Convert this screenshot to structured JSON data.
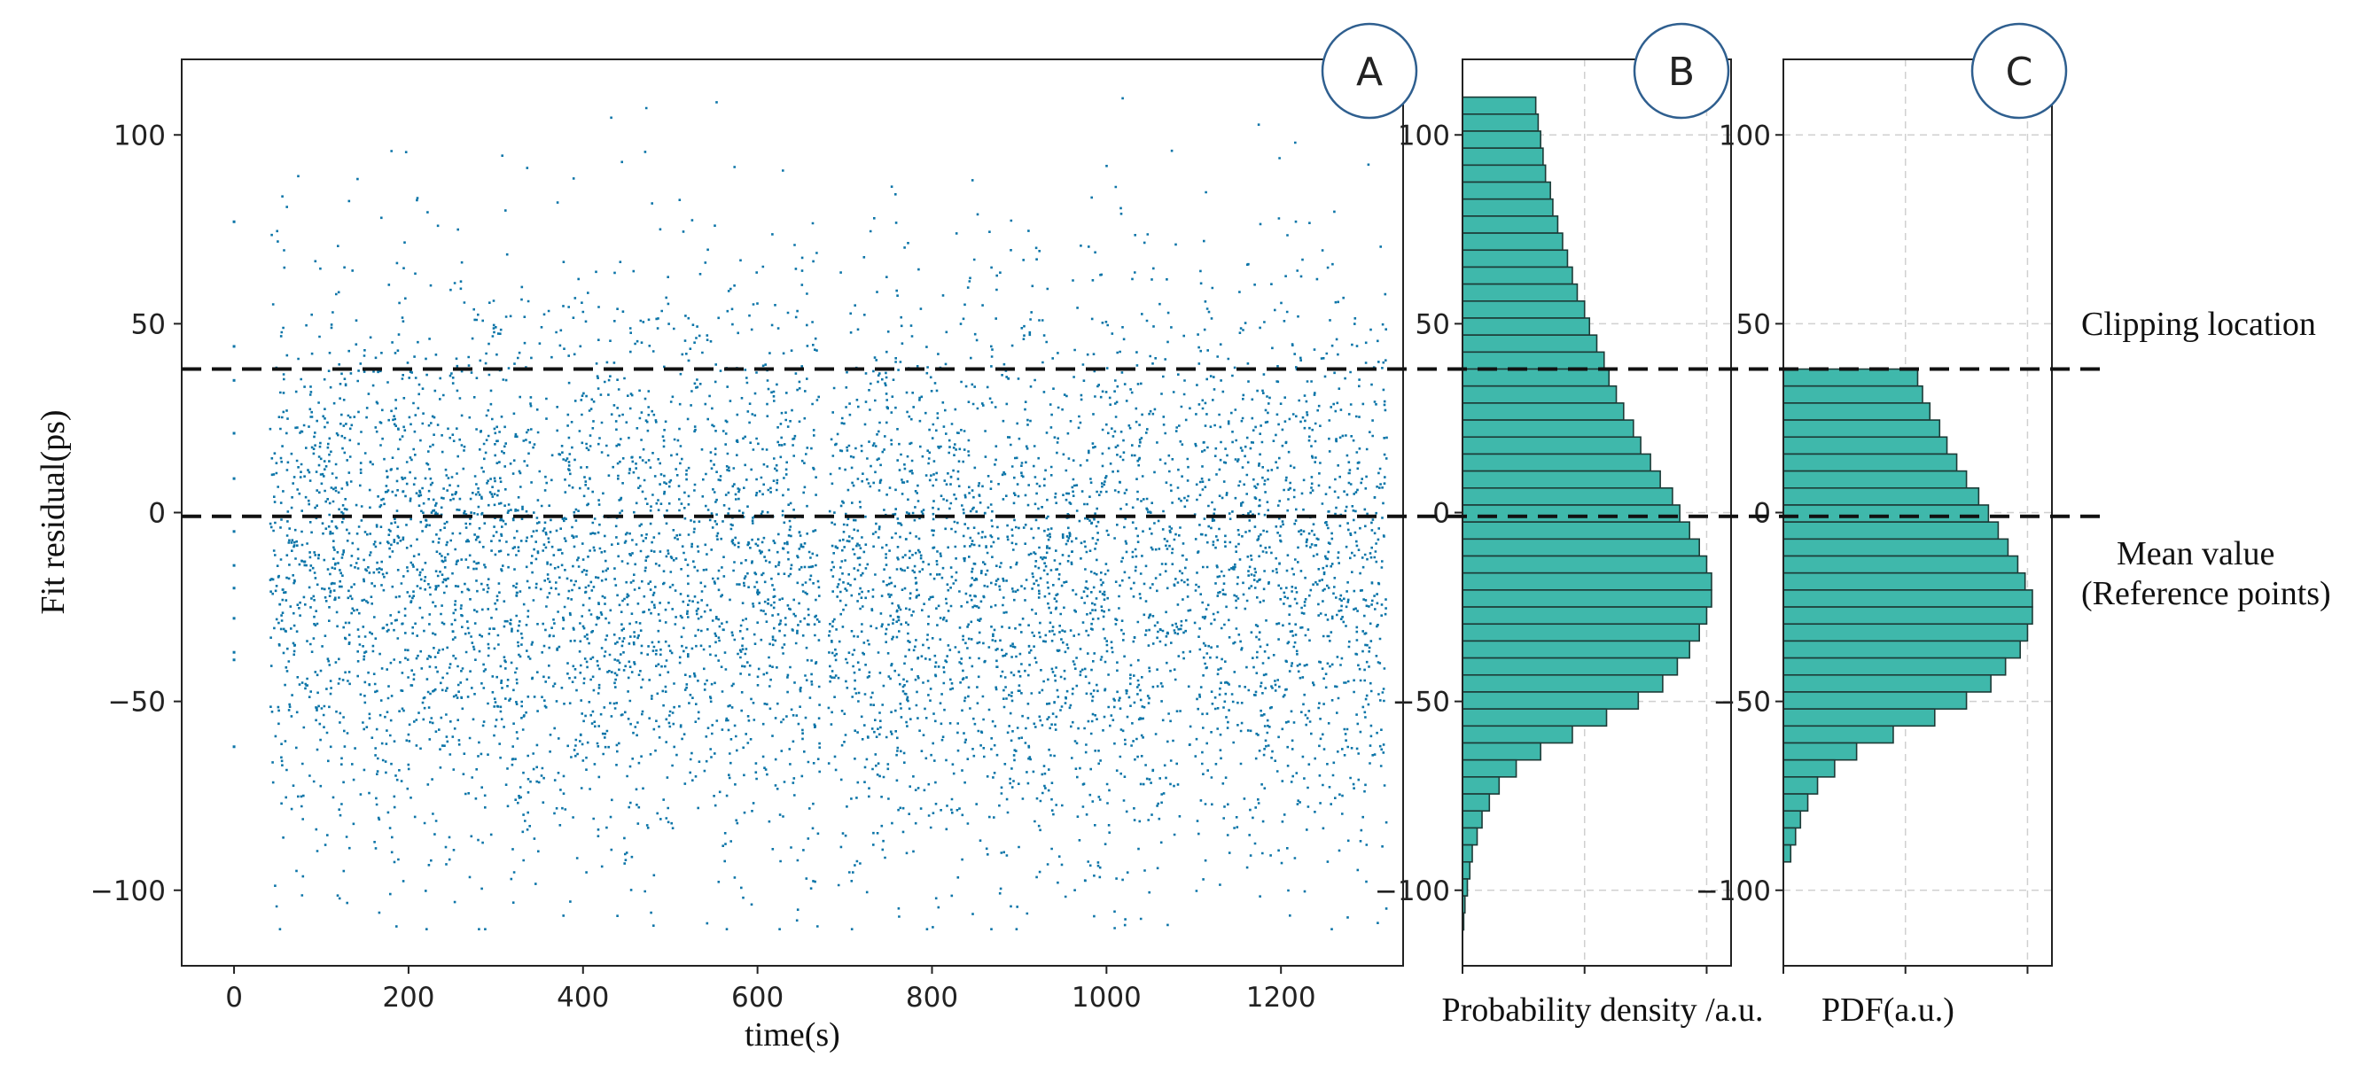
{
  "chart_data": [
    {
      "type": "scatter",
      "panel_label": "A",
      "xlabel": "time(s)",
      "ylabel": "Fit residual(ps)",
      "xlim": [
        -60,
        1340
      ],
      "ylim": [
        -120,
        120
      ],
      "x_ticks": [
        0,
        200,
        400,
        600,
        800,
        1000,
        1200
      ],
      "x_tick_labels": [
        "0",
        "200",
        "400",
        "600",
        "800",
        "1000",
        "1200"
      ],
      "y_ticks": [
        100,
        50,
        0,
        -50,
        -100
      ],
      "y_tick_labels": [
        "100",
        "50",
        "0",
        "−50",
        "−100"
      ],
      "point_color": "#0c75a8",
      "segments": [
        {
          "t_start": 40,
          "t_end": 670,
          "y_mean": -15,
          "y_sd": 38,
          "y_clip": [
            -110,
            110
          ]
        },
        {
          "t_start": 680,
          "t_end": 1095,
          "y_mean": -18,
          "y_sd": 38,
          "y_clip": [
            -110,
            110
          ]
        },
        {
          "t_start": 1100,
          "t_end": 1320,
          "y_mean": -16,
          "y_sd": 38,
          "y_clip": [
            -110,
            110
          ]
        }
      ],
      "isolated_points": {
        "x": 0,
        "y": [
          77,
          44,
          35,
          21,
          9,
          -5,
          -14,
          -20,
          -28,
          -37,
          -39,
          -62
        ]
      }
    },
    {
      "type": "bar",
      "orientation": "horizontal",
      "panel_label": "B",
      "xlabel": "Probability density /a.u.",
      "ylim": [
        -120,
        120
      ],
      "y_ticks": [
        100,
        50,
        0,
        -50,
        -100
      ],
      "y_tick_labels": [
        "100",
        "50",
        "0",
        "−50",
        "−100"
      ],
      "bar_color": "#3fb8ab",
      "bin_width": 4.5,
      "bin_centers": [
        107.75,
        103.25,
        98.75,
        94.25,
        89.75,
        85.25,
        80.75,
        76.25,
        71.75,
        67.25,
        62.75,
        58.25,
        53.75,
        49.25,
        44.75,
        40.25,
        35.75,
        31.25,
        26.75,
        22.25,
        17.75,
        13.25,
        8.75,
        4.25,
        -0.25,
        -4.75,
        -9.25,
        -13.75,
        -18.25,
        -22.75,
        -27.25,
        -31.75,
        -36.25,
        -40.75,
        -45.25,
        -49.75,
        -54.25,
        -58.75,
        -63.25,
        -67.75,
        -72.25,
        -76.75,
        -81.25,
        -85.75,
        -90.25,
        -94.75,
        -99.25,
        -103.75,
        -108.25
      ],
      "values": [
        0.3,
        0.31,
        0.32,
        0.33,
        0.34,
        0.36,
        0.37,
        0.39,
        0.41,
        0.43,
        0.45,
        0.47,
        0.5,
        0.52,
        0.55,
        0.58,
        0.6,
        0.63,
        0.66,
        0.7,
        0.73,
        0.77,
        0.81,
        0.86,
        0.89,
        0.93,
        0.97,
        1.0,
        1.02,
        1.02,
        1.0,
        0.97,
        0.93,
        0.88,
        0.82,
        0.72,
        0.59,
        0.45,
        0.32,
        0.22,
        0.15,
        0.11,
        0.08,
        0.06,
        0.04,
        0.03,
        0.02,
        0.01,
        0.005
      ],
      "xlim": [
        0,
        1.1
      ]
    },
    {
      "type": "bar",
      "orientation": "horizontal",
      "panel_label": "C",
      "xlabel": "PDF(a.u.)",
      "ylim": [
        -120,
        120
      ],
      "y_ticks": [
        100,
        50,
        0,
        -50,
        -100
      ],
      "y_tick_labels": [
        "100",
        "50",
        "0",
        "−50",
        "−100"
      ],
      "bar_color": "#3fb8ab",
      "bin_width": 4.5,
      "bin_centers": [
        35.75,
        31.25,
        26.75,
        22.25,
        17.75,
        13.25,
        8.75,
        4.25,
        -0.25,
        -4.75,
        -9.25,
        -13.75,
        -18.25,
        -22.75,
        -27.25,
        -31.75,
        -36.25,
        -40.75,
        -45.25,
        -49.75,
        -54.25,
        -58.75,
        -63.25,
        -67.75,
        -72.25,
        -76.75,
        -81.25,
        -85.75,
        -90.25
      ],
      "values": [
        0.55,
        0.57,
        0.6,
        0.64,
        0.67,
        0.71,
        0.75,
        0.8,
        0.84,
        0.88,
        0.92,
        0.96,
        0.99,
        1.02,
        1.02,
        1.0,
        0.97,
        0.91,
        0.85,
        0.75,
        0.62,
        0.45,
        0.3,
        0.21,
        0.14,
        0.1,
        0.07,
        0.05,
        0.03
      ],
      "xlim": [
        0,
        1.1
      ]
    }
  ],
  "reference_lines": {
    "clipping_y": 38,
    "mean_y": -1
  },
  "annotations": {
    "clipping": "Clipping location",
    "mean_line1": "Mean value",
    "mean_line2": "(Reference points)"
  }
}
